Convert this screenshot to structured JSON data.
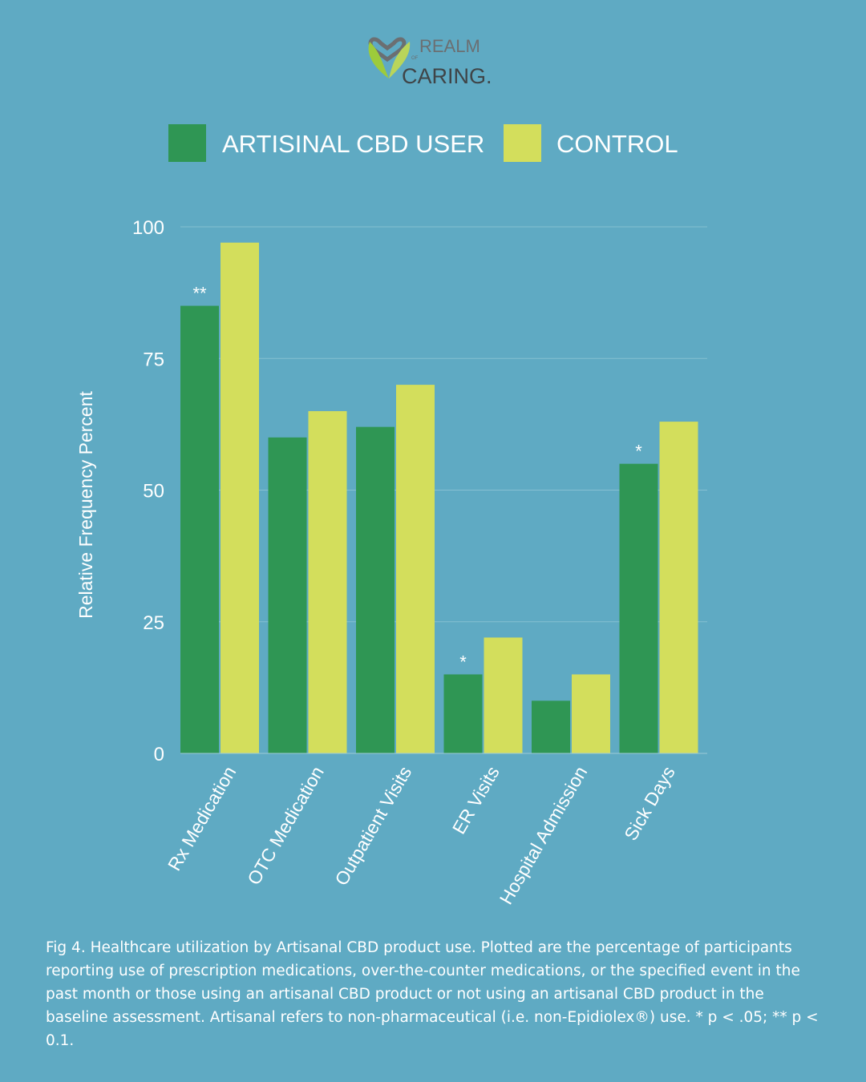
{
  "logo": {
    "line1": "REALM",
    "small": "OF",
    "line2": "CARING."
  },
  "colors": {
    "background": "#5FAAC3",
    "cbd_user": "#2F9654",
    "control": "#D3DE5C",
    "grid": "#86C0D2"
  },
  "chart_data": {
    "type": "bar",
    "title": "",
    "xlabel": "",
    "ylabel": "Relative Frequency Percent",
    "ylim": [
      0,
      100
    ],
    "yticks": [
      0,
      25,
      50,
      75,
      100
    ],
    "grid": true,
    "legend_placement": "top",
    "categories": [
      "Rx Medication",
      "OTC Medication",
      "Outpatient Visits",
      "ER Visits",
      "Hospital Admission",
      "Sick Days"
    ],
    "series": [
      {
        "name": "ARTISINAL CBD USER",
        "values": [
          85,
          60,
          62,
          15,
          10,
          55
        ]
      },
      {
        "name": "CONTROL",
        "values": [
          97,
          65,
          70,
          22,
          15,
          63
        ]
      }
    ],
    "annotations": [
      "**",
      "",
      "",
      "*",
      "",
      "*"
    ]
  },
  "caption": "Fig 4. Healthcare utilization by Artisanal CBD product use. Plotted are the percentage of participants reporting use of prescription medications, over-the-counter medications, or the specified event in the past month or those using an artisanal CBD product or not using an artisanal CBD product in the baseline assessment. Artisanal refers to non-pharmaceutical (i.e. non-Epidiolex®) use. * p < .05; ** p < 0.1."
}
